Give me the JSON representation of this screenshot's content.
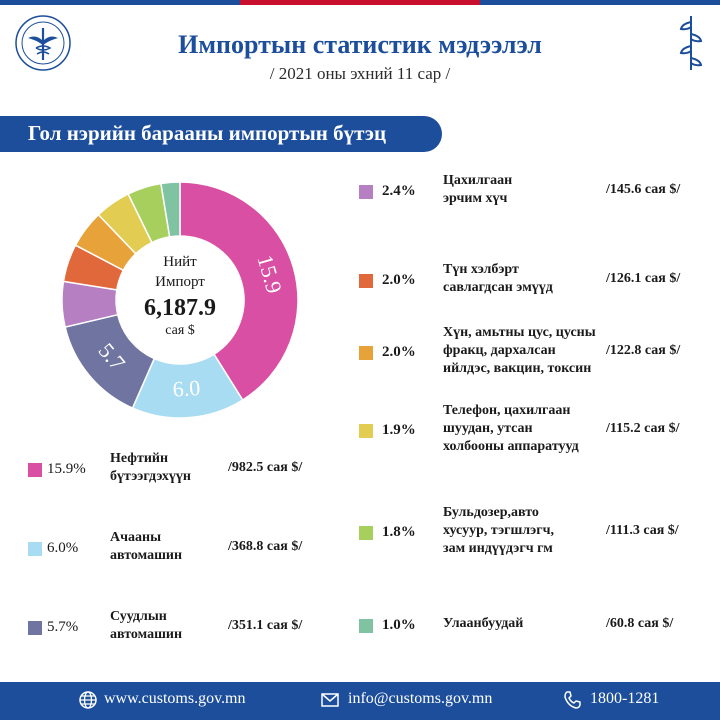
{
  "header": {
    "title": "Импортын статистик мэдээлэл",
    "subtitle": "/ 2021 оны эхний 11 сар /"
  },
  "banner": {
    "text": "Гол нэрийн барааны импортын бүтэц"
  },
  "center": {
    "line1": "Нийт",
    "line2": "Импорт",
    "total": "6,187.9",
    "unit": "сая $"
  },
  "colors": {
    "brand": "#1c4e9c",
    "accent_red": "#c8102e"
  },
  "chart_data": {
    "type": "pie",
    "style": "donut",
    "total": 6187.9,
    "unit": "сая $",
    "slice_labels_shown": [
      "15.9",
      "6.0",
      "5.7"
    ],
    "slices": [
      {
        "pct": 15.9,
        "pct_label": "15.9%",
        "name": "Нефтийн бүтээгдэхүүн",
        "value": 982.5,
        "value_label": "/982.5 сая $/",
        "color": "#d94fa3"
      },
      {
        "pct": 6.0,
        "pct_label": "6.0%",
        "name": "Ачааны автомашин",
        "value": 368.8,
        "value_label": "/368.8 сая $/",
        "color": "#a8dcf2"
      },
      {
        "pct": 5.7,
        "pct_label": "5.7%",
        "name": "Суудлын автомашин",
        "value": 351.1,
        "value_label": "/351.1 сая $/",
        "color": "#6f74a0"
      },
      {
        "pct": 2.4,
        "pct_label": "2.4%",
        "name": "Цахилгаан эрчим хүч",
        "value": 145.6,
        "value_label": "/145.6 сая $/",
        "color": "#b57fc2"
      },
      {
        "pct": 2.0,
        "pct_label": "2.0%",
        "name": "Түн хэлбэрт савлагдсан эмүүд",
        "value": 126.1,
        "value_label": "/126.1 сая $/",
        "color": "#e0683a"
      },
      {
        "pct": 2.0,
        "pct_label": "2.0%",
        "name": "Хүн, амьтны цус, цусны фракц, дархалсан ийлдэс, вакцин, токсин",
        "value": 122.8,
        "value_label": "/122.8 сая $/",
        "color": "#e8a23a"
      },
      {
        "pct": 1.9,
        "pct_label": "1.9%",
        "name": "Телефон, цахилгаан шуудан, утсан холбооны аппаратууд",
        "value": 115.2,
        "value_label": "/115.2 сая $/",
        "color": "#e3cc52"
      },
      {
        "pct": 1.8,
        "pct_label": "1.8%",
        "name": "Бульдозер,авто хусуур, тэгшлэгч, зам индүүдэгч гм",
        "value": 111.3,
        "value_label": "/111.3 сая $/",
        "color": "#a6cf5e"
      },
      {
        "pct": 1.0,
        "pct_label": "1.0%",
        "name": "Улаанбуудай",
        "value": 60.8,
        "value_label": "/60.8 сая $/",
        "color": "#7fc3a3"
      }
    ]
  },
  "legend_lines": [
    [
      "Нефтийн",
      "бүтээгдэхүүн"
    ],
    [
      "Ачааны",
      "автомашин"
    ],
    [
      "Суудлын",
      "автомашин"
    ],
    [
      "Цахилгаан",
      "эрчим хүч"
    ],
    [
      "Түн хэлбэрт",
      "савлагдсан эмүүд"
    ],
    [
      "Хүн, амьтны цус, цусны",
      "фракц, дархалсан",
      "ийлдэс, вакцин, токсин"
    ],
    [
      "Телефон, цахилгаан",
      "шуудан,  утсан",
      "холбооны аппаратууд"
    ],
    [
      "Бульдозер,авто",
      "хусуур, тэгшлэгч,",
      "зам индүүдэгч  гм"
    ],
    [
      "Улаанбуудай"
    ]
  ],
  "footer": {
    "website": "www.customs.gov.mn",
    "email": "info@customs.gov.mn",
    "phone": "1800-1281"
  }
}
